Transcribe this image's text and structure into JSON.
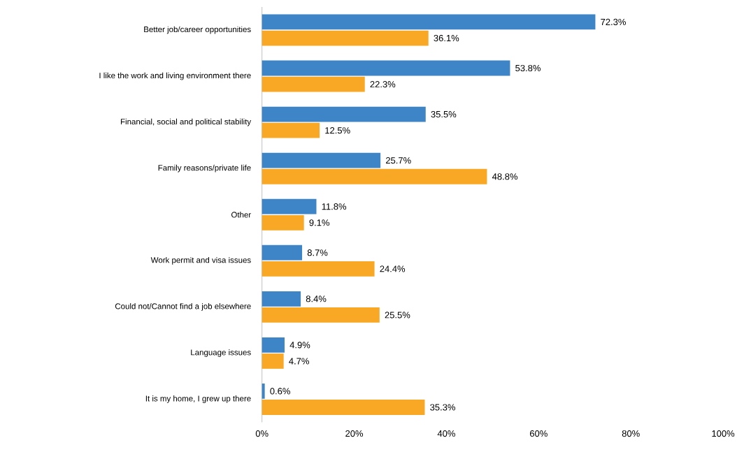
{
  "chart_data": {
    "type": "bar",
    "orientation": "horizontal",
    "categories": [
      "Better job/career opportunities",
      "I like the work and living environment there",
      "Financial, social and political stability",
      "Family reasons/private life",
      "Other",
      "Work permit and visa issues",
      "Could not/Cannot find a job elsewhere",
      "Language issues",
      "It is my home, I grew up there"
    ],
    "series": [
      {
        "color": "#3d85c6",
        "values": [
          72.3,
          53.8,
          35.5,
          25.7,
          11.8,
          8.7,
          8.4,
          4.9,
          0.6
        ],
        "value_labels": [
          "72.3%",
          "53.8%",
          "35.5%",
          "25.7%",
          "11.8%",
          "8.7%",
          "8.4%",
          "4.9%",
          "0.6%"
        ]
      },
      {
        "color": "#f9a825",
        "values": [
          36.1,
          22.3,
          12.5,
          48.8,
          9.1,
          24.4,
          25.5,
          4.7,
          35.3
        ],
        "value_labels": [
          "36.1%",
          "22.3%",
          "12.5%",
          "48.8%",
          "9.1%",
          "24.4%",
          "25.5%",
          "4.7%",
          "35.3%"
        ]
      }
    ],
    "xlim": [
      0,
      100
    ],
    "xticks": [
      {
        "value": 0,
        "label": "0%"
      },
      {
        "value": 20,
        "label": "20%"
      },
      {
        "value": 40,
        "label": "40%"
      },
      {
        "value": 60,
        "label": "60%"
      },
      {
        "value": 80,
        "label": "80%"
      },
      {
        "value": 100,
        "label": "100%"
      }
    ],
    "grid": false
  }
}
